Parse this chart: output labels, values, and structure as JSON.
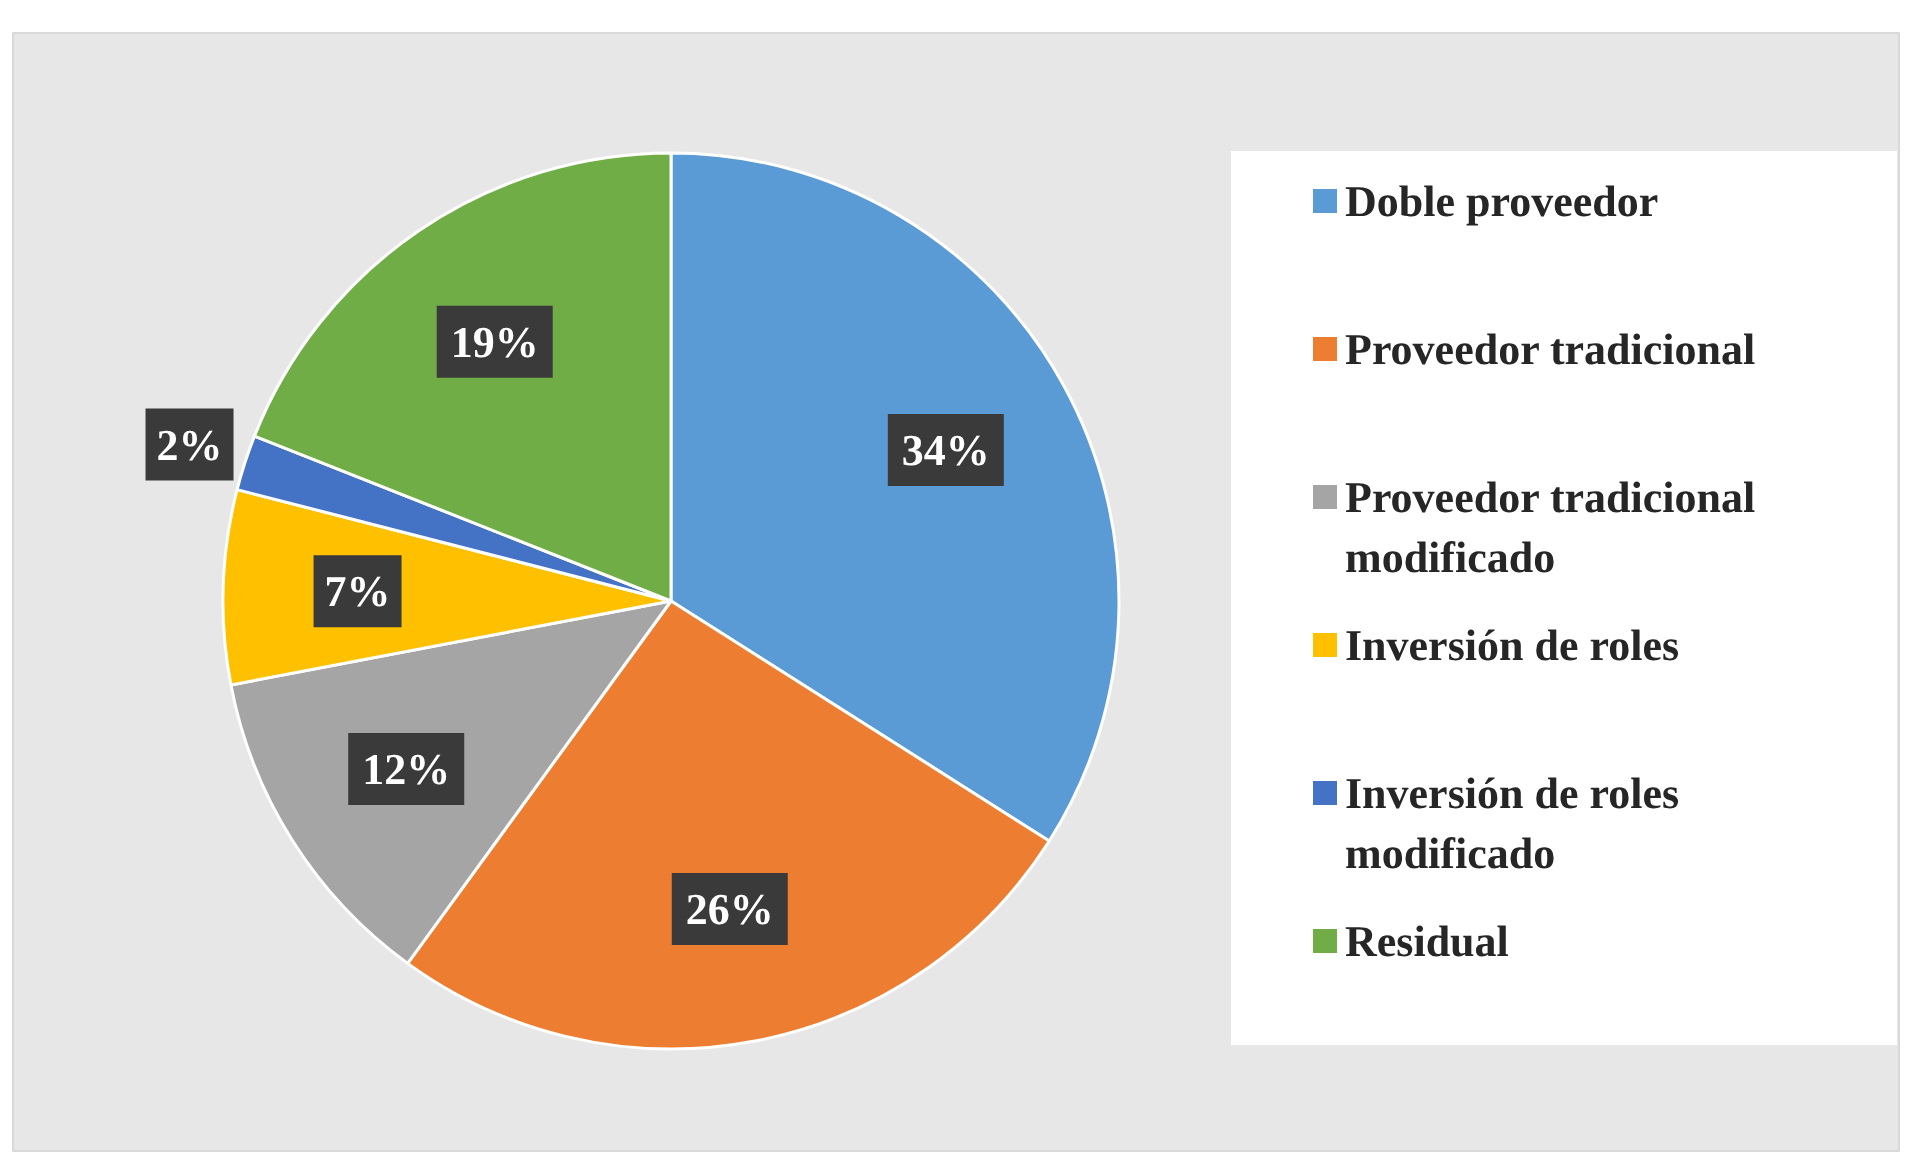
{
  "chart_data": {
    "type": "pie",
    "categories": [
      "Doble proveedor",
      "Proveedor tradicional",
      "Proveedor tradicional modificado",
      "Inversión de roles",
      "Inversión de roles modificado",
      "Residual"
    ],
    "values": [
      34,
      26,
      12,
      7,
      2,
      19
    ],
    "colors": [
      "#5b9bd5",
      "#ed7d31",
      "#a5a5a5",
      "#ffc000",
      "#4472c4",
      "#70ad47"
    ],
    "value_labels": [
      "34%",
      "26%",
      "12%",
      "7%",
      "2%",
      "19%"
    ],
    "legend": "right"
  }
}
